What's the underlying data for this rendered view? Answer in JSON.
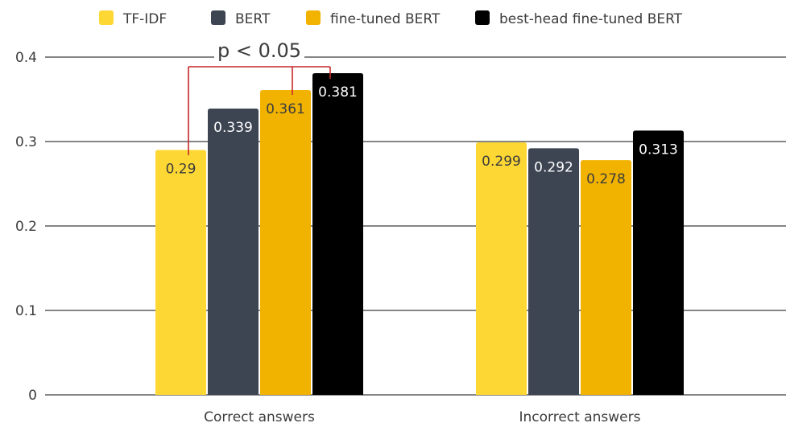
{
  "chart_data": {
    "type": "bar",
    "categories": [
      "Correct answers",
      "Incorrect answers"
    ],
    "series": [
      {
        "name": "TF-IDF",
        "values": [
          0.29,
          0.299
        ],
        "color": "#fdd835",
        "label_color": "#3c3c3c"
      },
      {
        "name": "BERT",
        "values": [
          0.339,
          0.292
        ],
        "color": "#3d4452",
        "label_color": "#ffffff"
      },
      {
        "name": "fine-tuned BERT",
        "values": [
          0.361,
          0.278
        ],
        "color": "#f2b300",
        "label_color": "#3c3c3c"
      },
      {
        "name": "best-head fine-tuned BERT",
        "values": [
          0.381,
          0.313
        ],
        "color": "#000000",
        "label_color": "#ffffff"
      }
    ],
    "data_labels": [
      [
        "0.29",
        "0.299"
      ],
      [
        "0.339",
        "0.292"
      ],
      [
        "0.361",
        "0.278"
      ],
      [
        "0.381",
        "0.313"
      ]
    ],
    "yticks": [
      "0",
      "0.1",
      "0.2",
      "0.3",
      "0.4"
    ],
    "ylim": [
      0,
      0.4
    ],
    "grid": true,
    "legend_position": "top",
    "annotation": {
      "text": "p < 0.05",
      "color": "#c62828",
      "between": [
        "TF-IDF",
        "fine-tuned BERT",
        "best-head fine-tuned BERT"
      ],
      "category": "Correct answers"
    }
  }
}
